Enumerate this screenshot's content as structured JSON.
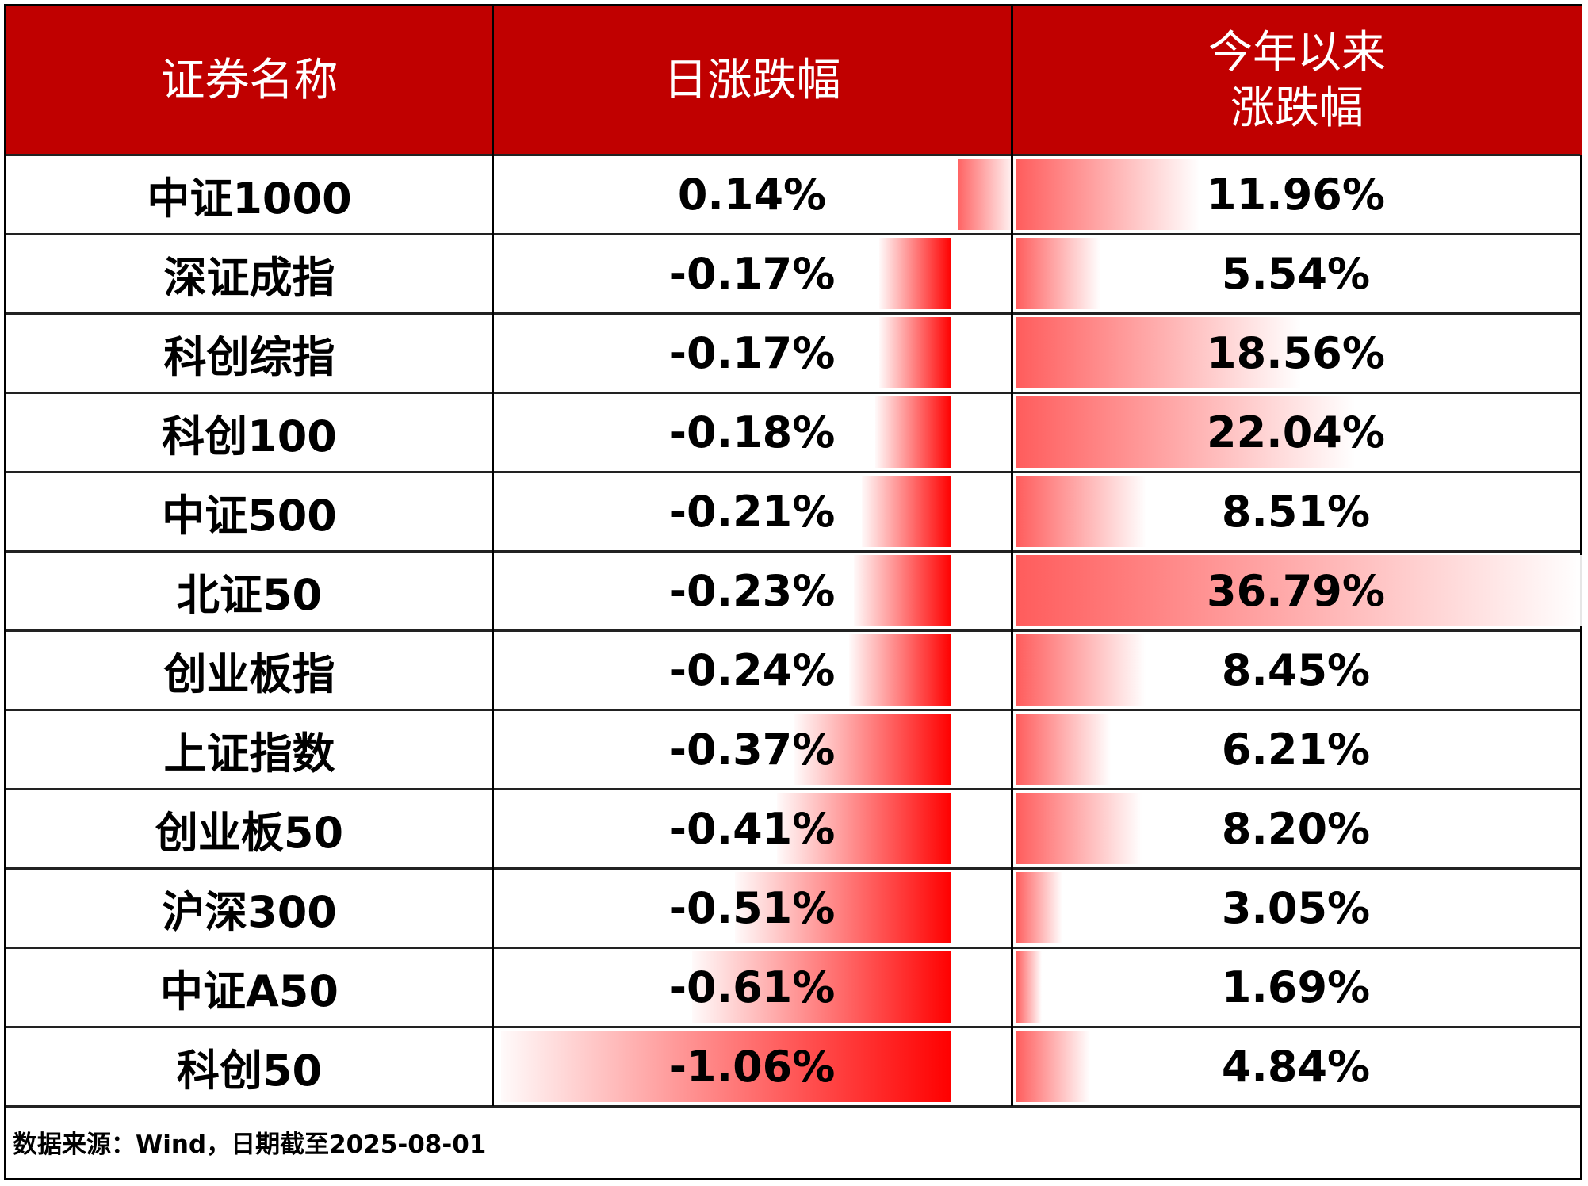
{
  "chart_data": {
    "type": "table",
    "columns": [
      "证券名称",
      "日涨跌幅",
      "今年以来\n涨跌幅"
    ],
    "header_color": "#C00000",
    "bar_colors": {
      "negative_daily": "#FF0000",
      "positive_daily": "#FF6363",
      "ytd": "#FF5C5C"
    },
    "rows": [
      {
        "name": "中证1000",
        "daily": 0.14,
        "daily_label": "0.14%",
        "ytd": 11.96,
        "ytd_label": "11.96%"
      },
      {
        "name": "深证成指",
        "daily": -0.17,
        "daily_label": "-0.17%",
        "ytd": 5.54,
        "ytd_label": "5.54%"
      },
      {
        "name": "科创综指",
        "daily": -0.17,
        "daily_label": "-0.17%",
        "ytd": 18.56,
        "ytd_label": "18.56%"
      },
      {
        "name": "科创100",
        "daily": -0.18,
        "daily_label": "-0.18%",
        "ytd": 22.04,
        "ytd_label": "22.04%"
      },
      {
        "name": "中证500",
        "daily": -0.21,
        "daily_label": "-0.21%",
        "ytd": 8.51,
        "ytd_label": "8.51%"
      },
      {
        "name": "北证50",
        "daily": -0.23,
        "daily_label": "-0.23%",
        "ytd": 36.79,
        "ytd_label": "36.79%"
      },
      {
        "name": "创业板指",
        "daily": -0.24,
        "daily_label": "-0.24%",
        "ytd": 8.45,
        "ytd_label": "8.45%"
      },
      {
        "name": "上证指数",
        "daily": -0.37,
        "daily_label": "-0.37%",
        "ytd": 6.21,
        "ytd_label": "6.21%"
      },
      {
        "name": "创业板50",
        "daily": -0.41,
        "daily_label": "-0.41%",
        "ytd": 8.2,
        "ytd_label": "8.20%"
      },
      {
        "name": "沪深300",
        "daily": -0.51,
        "daily_label": "-0.51%",
        "ytd": 3.05,
        "ytd_label": "3.05%"
      },
      {
        "name": "中证A50",
        "daily": -0.61,
        "daily_label": "-0.61%",
        "ytd": 1.69,
        "ytd_label": "1.69%"
      },
      {
        "name": "科创50",
        "daily": -1.06,
        "daily_label": "-1.06%",
        "ytd": 4.84,
        "ytd_label": "4.84%"
      }
    ],
    "footnote": "数据来源：Wind，日期截至2025-08-01"
  }
}
